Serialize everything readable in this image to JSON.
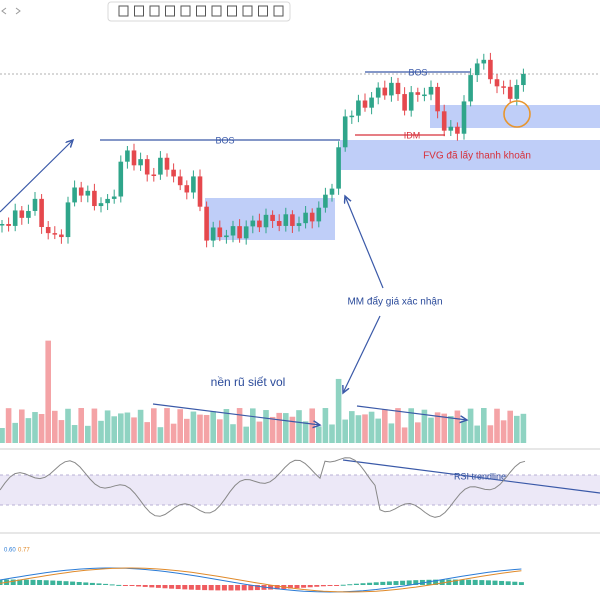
{
  "annotations": {
    "bos_left": "BOS",
    "bos_top": "BOS",
    "idm": "IDM",
    "fvg": "FVG đã lấy thanh khoản",
    "mm": "MM đẩy giá xác nhận",
    "base": "nền rũ siết vol",
    "rsi": "RSI trendline"
  },
  "macd_legend": {
    "first": "0.60",
    "second": "0.77"
  }
}
